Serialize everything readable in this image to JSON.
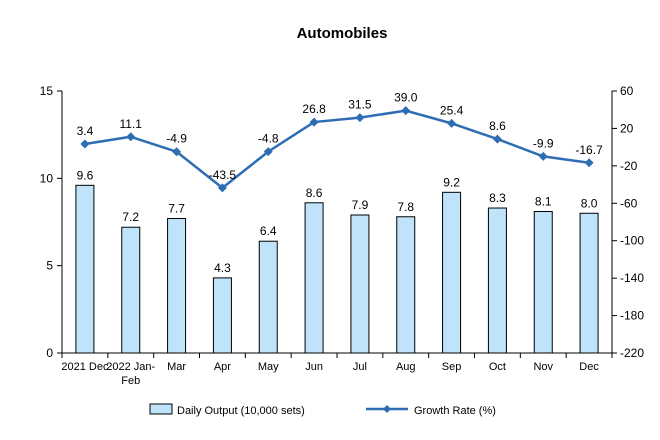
{
  "chart_data": {
    "type": "bar+line",
    "title": "Automobiles",
    "categories": [
      "2021 Dec",
      "2022 Jan-Feb",
      "Mar",
      "Apr",
      "May",
      "Jun",
      "Jul",
      "Aug",
      "Sep",
      "Oct",
      "Nov",
      "Dec"
    ],
    "category_lines": [
      [
        "2021 Dec"
      ],
      [
        "2022 Jan-",
        "Feb"
      ],
      [
        "Mar"
      ],
      [
        "Apr"
      ],
      [
        "May"
      ],
      [
        "Jun"
      ],
      [
        "Jul"
      ],
      [
        "Aug"
      ],
      [
        "Sep"
      ],
      [
        "Oct"
      ],
      [
        "Nov"
      ],
      [
        "Dec"
      ]
    ],
    "series": [
      {
        "name": "Daily Output (10,000 sets)",
        "type": "bar",
        "axis": "left",
        "values": [
          9.6,
          7.2,
          7.7,
          4.3,
          6.4,
          8.6,
          7.9,
          7.8,
          9.2,
          8.3,
          8.1,
          8.0
        ],
        "labels": [
          "9.6",
          "7.2",
          "7.7",
          "4.3",
          "6.4",
          "8.6",
          "7.9",
          "7.8",
          "9.2",
          "8.3",
          "8.1",
          "8.0"
        ],
        "color": "#BFE3FA"
      },
      {
        "name": "Growth Rate (%)",
        "type": "line",
        "axis": "right",
        "values": [
          3.4,
          11.1,
          -4.9,
          -43.5,
          -4.8,
          26.8,
          31.5,
          39.0,
          25.4,
          8.6,
          -9.9,
          -16.7
        ],
        "labels": [
          "3.4",
          "11.1",
          "-4.9",
          "-43.5",
          "-4.8",
          "26.8",
          "31.5",
          "39.0",
          "25.4",
          "8.6",
          "-9.9",
          "-16.7"
        ],
        "color": "#2E6DB4"
      }
    ],
    "y_left": {
      "range": [
        0,
        15
      ],
      "ticks": [
        0,
        5,
        10,
        15
      ],
      "tick_labels": [
        "0",
        "5",
        "10",
        "15"
      ]
    },
    "y_right": {
      "range": [
        -220,
        60
      ],
      "ticks": [
        60,
        20,
        -20,
        -60,
        -100,
        -140,
        -180,
        -220
      ],
      "tick_labels": [
        "60",
        "20",
        "-20",
        "-60",
        "-100",
        "-140",
        "-180",
        "-220"
      ]
    },
    "grid": false,
    "legend_position": "bottom"
  }
}
